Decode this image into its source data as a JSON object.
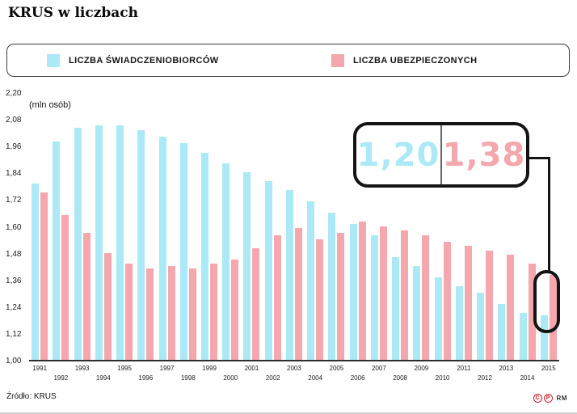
{
  "title": "KRUS w liczbach",
  "legend": {
    "items": [
      {
        "label": "LICZBA ŚWIADCZENIOBIORCÓW",
        "color": "#ace9f6"
      },
      {
        "label": "LICZBA UBEZPIECZONYCH",
        "color": "#f4a7ac"
      }
    ]
  },
  "callout": {
    "beneficiaries_2015": "1,20",
    "insured_2015": "1,38"
  },
  "footer": {
    "source": "Źródło: KRUS",
    "marks": [
      "C",
      "P"
    ],
    "branding": "RM"
  },
  "chart_data": {
    "type": "bar",
    "title": "KRUS w liczbach",
    "ylabel": "(mln osób)",
    "ylim": [
      1.0,
      2.2
    ],
    "ytick_labels": [
      "2,20",
      "2,08",
      "1,96",
      "1,84",
      "1,72",
      "1,60",
      "1,48",
      "1,36",
      "1,24",
      "1,12",
      "1,00"
    ],
    "grid": false,
    "legend_position": "top",
    "categories": [
      1991,
      1992,
      1993,
      1994,
      1995,
      1996,
      1997,
      1998,
      1999,
      2000,
      2001,
      2002,
      2003,
      2004,
      2005,
      2006,
      2007,
      2008,
      2009,
      2010,
      2011,
      2012,
      2013,
      2014,
      2015
    ],
    "series": [
      {
        "name": "LICZBA ŚWIADCZENIOBIORCÓW",
        "key": "swiadczeniobiorcy",
        "color": "#ace9f6",
        "values": [
          1.79,
          1.98,
          2.04,
          2.05,
          2.05,
          2.03,
          2.0,
          1.97,
          1.93,
          1.88,
          1.84,
          1.8,
          1.76,
          1.71,
          1.66,
          1.61,
          1.56,
          1.46,
          1.42,
          1.37,
          1.33,
          1.3,
          1.25,
          1.21,
          1.2
        ]
      },
      {
        "name": "LICZBA UBEZPIECZONYCH",
        "key": "ubezpieczeni",
        "color": "#f4a7ac",
        "values": [
          1.75,
          1.65,
          1.57,
          1.48,
          1.43,
          1.41,
          1.42,
          1.41,
          1.43,
          1.45,
          1.5,
          1.56,
          1.59,
          1.54,
          1.57,
          1.62,
          1.6,
          1.58,
          1.56,
          1.53,
          1.51,
          1.49,
          1.47,
          1.43,
          1.38
        ]
      }
    ],
    "annotation": {
      "year": 2015,
      "beneficiaries": "1,20",
      "insured": "1,38"
    }
  }
}
